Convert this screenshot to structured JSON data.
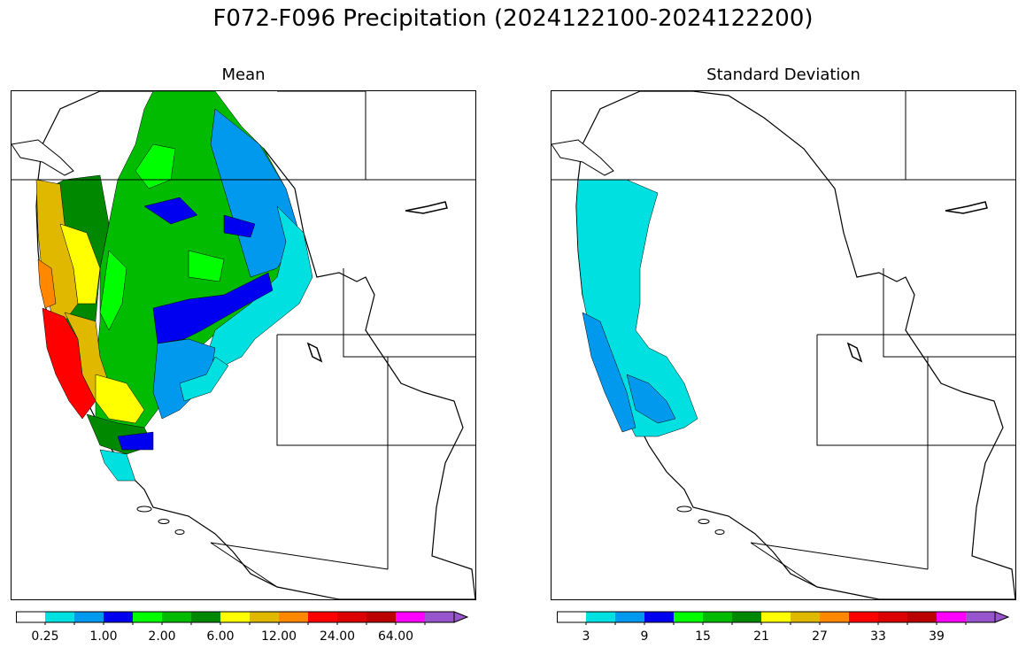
{
  "title": "F072-F096 Precipitation (2024122100-2024122200)",
  "panels": [
    {
      "title": "Mean",
      "colorbar": {
        "colors": [
          "#ffffff",
          "#00e0e0",
          "#0099ee",
          "#0000f0",
          "#00ff00",
          "#00bb00",
          "#008800",
          "#ffff00",
          "#e0b800",
          "#ff8800",
          "#ff0000",
          "#dd0000",
          "#bb0000",
          "#ff00ff",
          "#9955cc"
        ],
        "tick_labels": [
          "0.25",
          "1.00",
          "2.00",
          "6.00",
          "12.00",
          "24.00",
          "64.00"
        ],
        "extend": "max"
      }
    },
    {
      "title": "Standard Deviation",
      "colorbar": {
        "colors": [
          "#ffffff",
          "#00e0e0",
          "#0099ee",
          "#0000f0",
          "#00ff00",
          "#00bb00",
          "#008800",
          "#ffff00",
          "#e0b800",
          "#ff8800",
          "#ff0000",
          "#dd0000",
          "#bb0000",
          "#ff00ff",
          "#9955cc"
        ],
        "tick_labels": [
          "3",
          "9",
          "15",
          "21",
          "27",
          "33",
          "39"
        ],
        "extend": "max"
      }
    }
  ]
}
